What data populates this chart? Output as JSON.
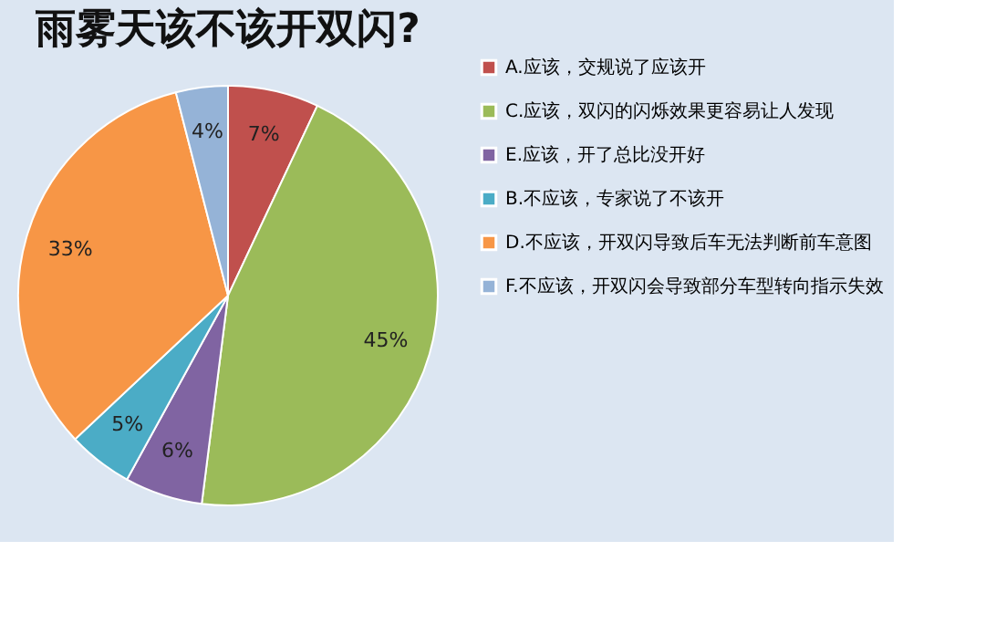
{
  "chart_data": {
    "type": "pie",
    "title": "雨雾天该不该开双闪?",
    "categories": [
      "A.应该，交规说了应该开",
      "C.应该，双闪的闪烁效果更容易让人发现",
      "E.应该，开了总比没开好",
      "B.不应该，专家说了不该开",
      "D.不应该，开双闪导致后车无法判断前车意图",
      "F.不应该，开双闪会导致部分车型转向指示失效"
    ],
    "values": [
      7,
      45,
      6,
      5,
      33,
      4
    ],
    "colors": [
      "#c0504d",
      "#9bbb59",
      "#8064a2",
      "#4bacc6",
      "#f79646",
      "#95b3d7"
    ],
    "value_labels": [
      "7%",
      "45%",
      "6%",
      "5%",
      "33%",
      "4%"
    ],
    "legend": "right"
  }
}
